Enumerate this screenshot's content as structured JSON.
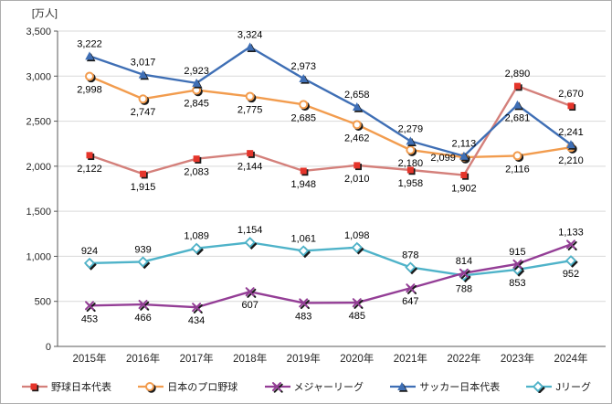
{
  "chart_data": {
    "type": "line",
    "unit_label": "[万人]",
    "categories": [
      "2015年",
      "2016年",
      "2017年",
      "2018年",
      "2019年",
      "2020年",
      "2021年",
      "2022年",
      "2023年",
      "2024年"
    ],
    "ylim": [
      0,
      3500
    ],
    "yticks": [
      0,
      500,
      1000,
      1500,
      2000,
      2500,
      3000,
      3500
    ],
    "ytick_labels": [
      "0",
      "500",
      "1,000",
      "1,500",
      "2,000",
      "2,500",
      "3,000",
      "3,500"
    ],
    "grid": true,
    "legend_position": "bottom",
    "series": [
      {
        "key": "baseball-japan",
        "name": "野球日本代表",
        "marker": "square",
        "color": "#d4807b",
        "marker_color": "#e5352b",
        "values": [
          2122,
          1915,
          2083,
          2144,
          1948,
          2010,
          1958,
          1902,
          2890,
          2670
        ],
        "labels": [
          "2,122",
          "1,915",
          "2,083",
          "2,144",
          "1,948",
          "2,010",
          "1,958",
          "1,902",
          "2,890",
          "2,670"
        ],
        "label_pos": [
          "below",
          "below",
          "below",
          "below",
          "below",
          "below",
          "below",
          "below",
          "above",
          "above"
        ]
      },
      {
        "key": "npb",
        "name": "日本のプロ野球",
        "marker": "circle",
        "color": "#f29c4e",
        "marker_color": "#f29c4e",
        "values": [
          2998,
          2747,
          2845,
          2775,
          2685,
          2462,
          2180,
          2099,
          2116,
          2210
        ],
        "labels": [
          "2,998",
          "2,747",
          "2,845",
          "2,775",
          "2,685",
          "2,462",
          "2,180",
          "2,099",
          "2,116",
          "2,210"
        ],
        "label_pos": [
          "below",
          "below",
          "below",
          "below",
          "below",
          "below",
          "below",
          "left",
          "below",
          "below"
        ]
      },
      {
        "key": "mlb",
        "name": "メジャーリーグ",
        "marker": "x",
        "color": "#943e96",
        "marker_color": "#943e96",
        "values": [
          453,
          466,
          434,
          607,
          483,
          485,
          647,
          814,
          915,
          1133
        ],
        "labels": [
          "453",
          "466",
          "434",
          "607",
          "483",
          "485",
          "647",
          "814",
          "915",
          "1,133"
        ],
        "label_pos": [
          "below",
          "below",
          "below",
          "below",
          "below",
          "below",
          "below",
          "above",
          "above",
          "above"
        ]
      },
      {
        "key": "soccer-japan",
        "name": "サッカー日本代表",
        "marker": "triangle",
        "color": "#3f6fb5",
        "marker_color": "#3f6fb5",
        "values": [
          3222,
          3017,
          2923,
          3324,
          2973,
          2658,
          2279,
          2113,
          2681,
          2241
        ],
        "labels": [
          "3,222",
          "3,017",
          "2,923",
          "3,324",
          "2,973",
          "2,658",
          "2,279",
          "2,113",
          "2,681",
          "2,241"
        ],
        "label_pos": [
          "above",
          "above",
          "above",
          "above",
          "above",
          "above",
          "above",
          "above",
          "below",
          "above"
        ]
      },
      {
        "key": "jleague",
        "name": "Jリーグ",
        "marker": "diamond",
        "color": "#4fb3c9",
        "marker_color": "#4fb3c9",
        "values": [
          924,
          939,
          1089,
          1154,
          1061,
          1098,
          878,
          788,
          853,
          952
        ],
        "labels": [
          "924",
          "939",
          "1,089",
          "1,154",
          "1,061",
          "1,098",
          "878",
          "788",
          "853",
          "952"
        ],
        "label_pos": [
          "above",
          "above",
          "above",
          "above",
          "above",
          "above",
          "above",
          "below",
          "below",
          "below"
        ]
      }
    ]
  }
}
